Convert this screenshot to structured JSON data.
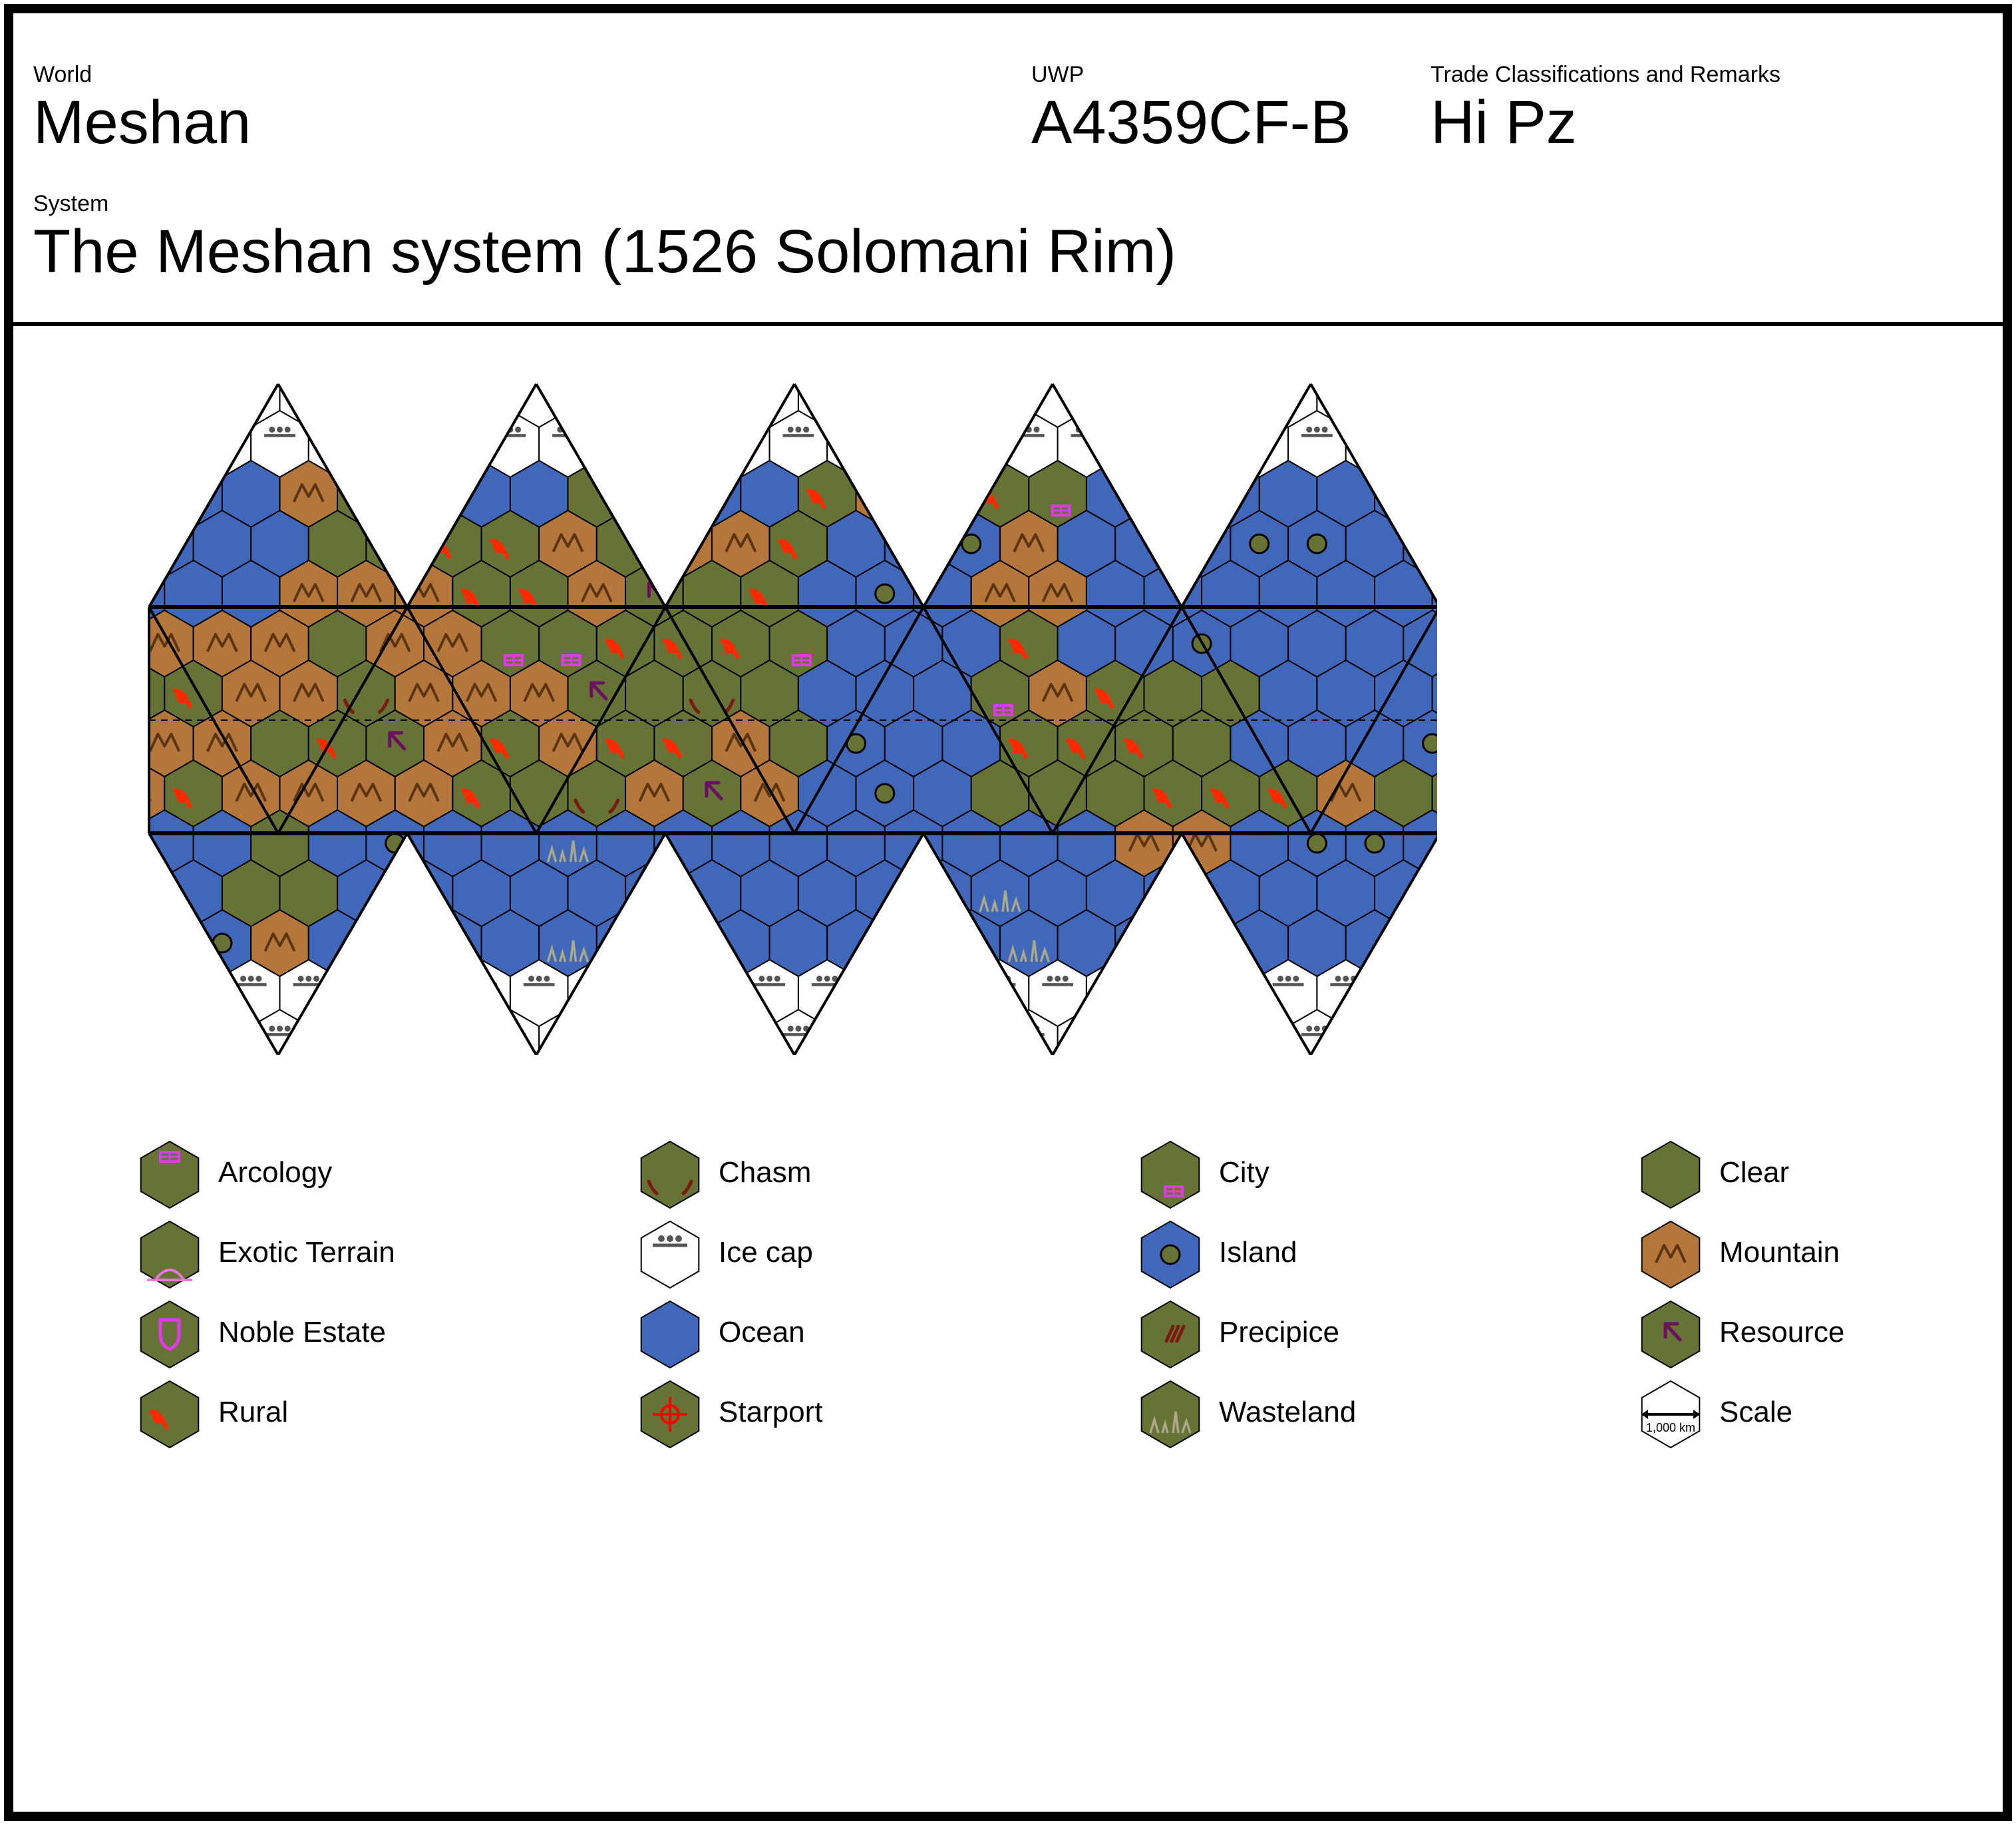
{
  "header": {
    "world_label": "World",
    "world_value": "Meshan",
    "uwp_label": "UWP",
    "uwp_value": "A4359CF-B",
    "trade_label": "Trade Classifications and Remarks",
    "trade_value": "Hi Pz",
    "system_label": "System",
    "system_value": "The Meshan system (1526 Solomani Rim)"
  },
  "colors": {
    "ocean": "#4167bb",
    "clear": "#667236",
    "mountain": "#b5763b",
    "icecap": "#ffffff",
    "arcology": "#e039e8",
    "rural": "#ff2a00",
    "chasm": "#7a1a10",
    "resource": "#6a1060",
    "wasteland": "#a9a987",
    "starport": "#ff0000"
  },
  "legend": [
    {
      "key": "arcology",
      "label": "Arcology",
      "icon": "arcology-icon"
    },
    {
      "key": "chasm",
      "label": "Chasm",
      "icon": "chasm-icon"
    },
    {
      "key": "city",
      "label": "City",
      "icon": "city-icon"
    },
    {
      "key": "clear",
      "label": "Clear",
      "icon": "clear-icon"
    },
    {
      "key": "exotic",
      "label": "Exotic Terrain",
      "icon": "exotic-terrain-icon"
    },
    {
      "key": "icecap",
      "label": "Ice cap",
      "icon": "ice-cap-icon"
    },
    {
      "key": "island",
      "label": "Island",
      "icon": "island-icon"
    },
    {
      "key": "mountain",
      "label": "Mountain",
      "icon": "mountain-icon"
    },
    {
      "key": "noble",
      "label": "Noble Estate",
      "icon": "noble-estate-icon"
    },
    {
      "key": "ocean",
      "label": "Ocean",
      "icon": "ocean-icon"
    },
    {
      "key": "precipice",
      "label": "Precipice",
      "icon": "precipice-icon"
    },
    {
      "key": "resource",
      "label": "Resource",
      "icon": "resource-icon"
    },
    {
      "key": "rural",
      "label": "Rural",
      "icon": "rural-icon"
    },
    {
      "key": "starport",
      "label": "Starport",
      "icon": "starport-icon"
    },
    {
      "key": "wasteland",
      "label": "Wasteland",
      "icon": "wasteland-icon"
    },
    {
      "key": "scale",
      "label": "Scale",
      "icon": "scale-icon",
      "scale_text": "1,000 km"
    }
  ]
}
